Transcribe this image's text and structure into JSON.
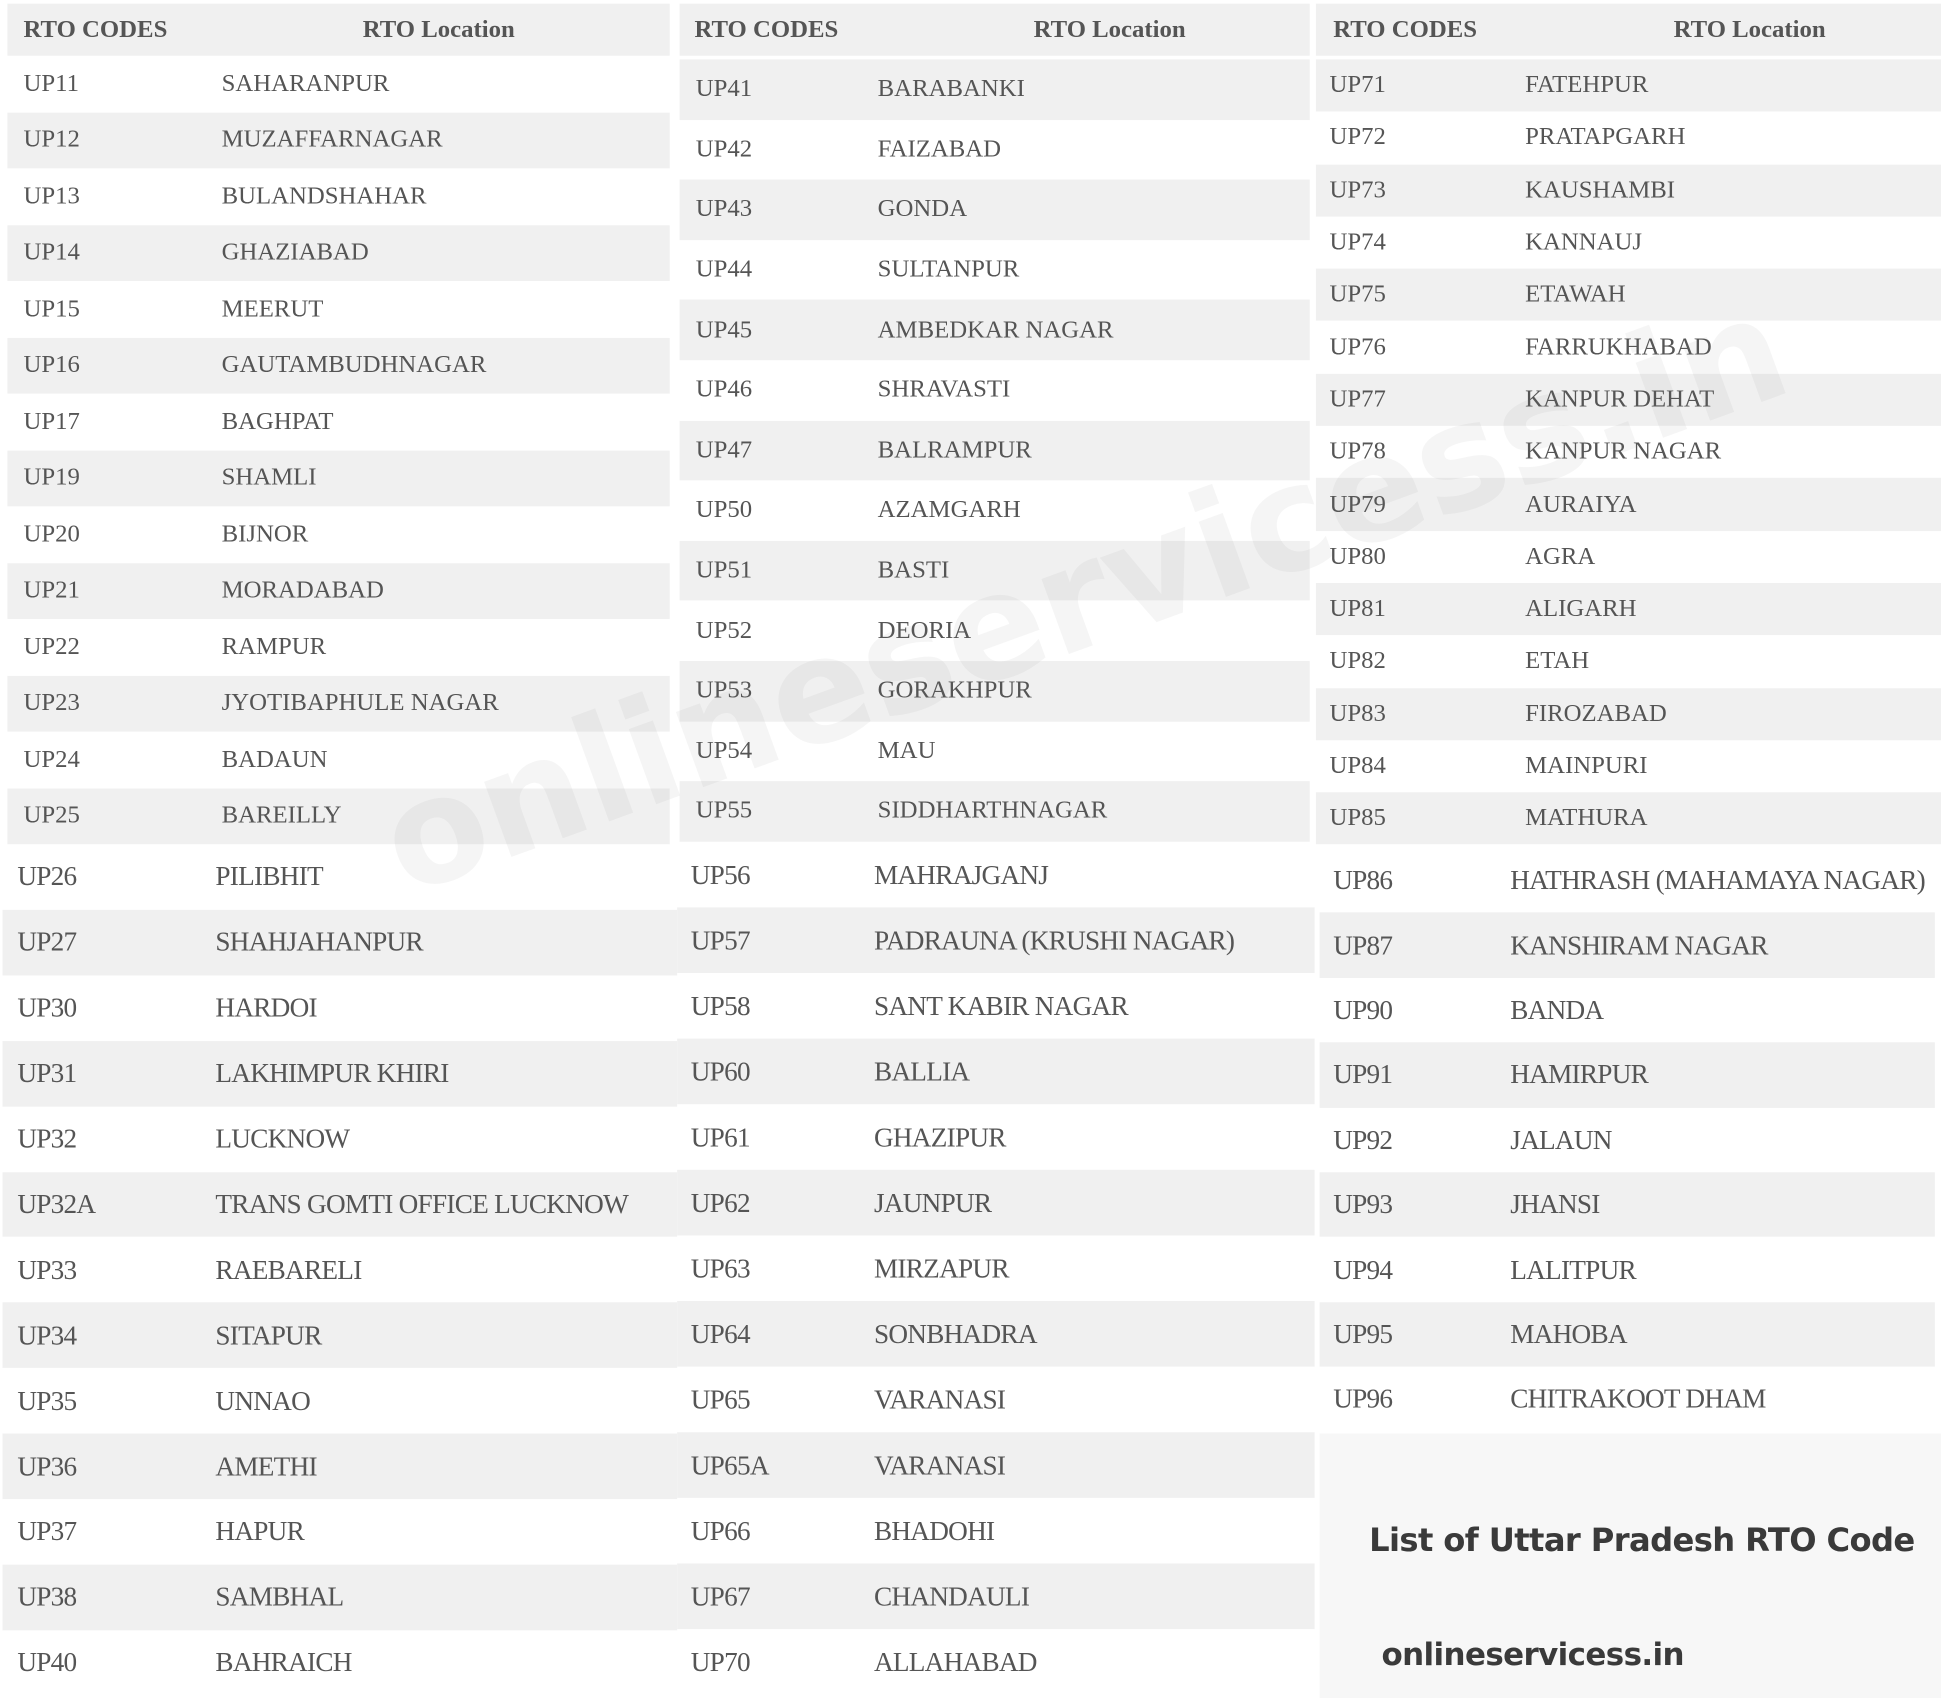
{
  "header": {
    "code_label": "RTO CODES",
    "location_label": "RTO Location"
  },
  "tables": [
    {
      "upper": [
        [
          "UP11",
          "SAHARANPUR"
        ],
        [
          "UP12",
          "MUZAFFARNAGAR"
        ],
        [
          "UP13",
          "BULANDSHAHAR"
        ],
        [
          "UP14",
          "GHAZIABAD"
        ],
        [
          "UP15",
          "MEERUT"
        ],
        [
          "UP16",
          "GAUTAMBUDHNAGAR"
        ],
        [
          "UP17",
          "BAGHPAT"
        ],
        [
          "UP19",
          "SHAMLI"
        ],
        [
          "UP20",
          "BIJNOR"
        ],
        [
          "UP21",
          "MORADABAD"
        ],
        [
          "UP22",
          "RAMPUR"
        ],
        [
          "UP23",
          "JYOTIBAPHULE NAGAR"
        ],
        [
          "UP24",
          "BADAUN"
        ],
        [
          "UP25",
          "BAREILLY"
        ]
      ],
      "lower": [
        [
          "UP26",
          "PILIBHIT"
        ],
        [
          "UP27",
          "SHAHJAHANPUR"
        ],
        [
          "UP30",
          "HARDOI"
        ],
        [
          "UP31",
          "LAKHIMPUR KHIRI"
        ],
        [
          "UP32",
          "LUCKNOW"
        ],
        [
          "UP32A",
          "TRANS GOMTI OFFICE LUCKNOW"
        ],
        [
          "UP33",
          "RAEBARELI"
        ],
        [
          "UP34",
          "SITAPUR"
        ],
        [
          "UP35",
          "UNNAO"
        ],
        [
          "UP36",
          "AMETHI"
        ],
        [
          "UP37",
          "HAPUR"
        ],
        [
          "UP38",
          "SAMBHAL"
        ],
        [
          "UP40",
          "BAHRAICH"
        ]
      ]
    },
    {
      "upper": [
        [
          "UP41",
          "BARABANKI"
        ],
        [
          "UP42",
          "FAIZABAD"
        ],
        [
          "UP43",
          "GONDA"
        ],
        [
          "UP44",
          "SULTANPUR"
        ],
        [
          "UP45",
          "AMBEDKAR NAGAR"
        ],
        [
          "UP46",
          "SHRAVASTI"
        ],
        [
          "UP47",
          "BALRAMPUR"
        ],
        [
          "UP50",
          "AZAMGARH"
        ],
        [
          "UP51",
          "BASTI"
        ],
        [
          "UP52",
          "DEORIA"
        ],
        [
          "UP53",
          "GORAKHPUR"
        ],
        [
          "UP54",
          "MAU"
        ],
        [
          "UP55",
          "SIDDHARTHNAGAR"
        ]
      ],
      "lower": [
        [
          "UP56",
          "MAHRAJGANJ"
        ],
        [
          "UP57",
          "PADRAUNA (KRUSHI NAGAR)"
        ],
        [
          "UP58",
          "SANT KABIR NAGAR"
        ],
        [
          "UP60",
          "BALLIA"
        ],
        [
          "UP61",
          "GHAZIPUR"
        ],
        [
          "UP62",
          "JAUNPUR"
        ],
        [
          "UP63",
          "MIRZAPUR"
        ],
        [
          "UP64",
          "SONBHADRA"
        ],
        [
          "UP65",
          "VARANASI"
        ],
        [
          "UP65A",
          "VARANASI"
        ],
        [
          "UP66",
          "BHADOHI"
        ],
        [
          "UP67",
          "CHANDAULI"
        ],
        [
          "UP70",
          "ALLAHABAD"
        ]
      ]
    },
    {
      "upper": [
        [
          "UP71",
          "FATEHPUR"
        ],
        [
          "UP72",
          "PRATAPGARH"
        ],
        [
          "UP73",
          "KAUSHAMBI"
        ],
        [
          "UP74",
          "KANNAUJ"
        ],
        [
          "UP75",
          "ETAWAH"
        ],
        [
          "UP76",
          "FARRUKHABAD"
        ],
        [
          "UP77",
          "KANPUR DEHAT"
        ],
        [
          "UP78",
          "KANPUR NAGAR"
        ],
        [
          "UP79",
          "AURAIYA"
        ],
        [
          "UP80",
          "AGRA"
        ],
        [
          "UP81",
          "ALIGARH"
        ],
        [
          "UP82",
          "ETAH"
        ],
        [
          "UP83",
          "FIROZABAD"
        ],
        [
          "UP84",
          "MAINPURI"
        ],
        [
          "UP85",
          "MATHURA"
        ]
      ],
      "lower": [
        [
          "UP86",
          "HATHRASH (MAHAMAYA NAGAR)"
        ],
        [
          "UP87",
          "KANSHIRAM NAGAR"
        ],
        [
          "UP90",
          "BANDA"
        ],
        [
          "UP91",
          "HAMIRPUR"
        ],
        [
          "UP92",
          "JALAUN"
        ],
        [
          "UP93",
          "JHANSI"
        ],
        [
          "UP94",
          "LALITPUR"
        ],
        [
          "UP95",
          "MAHOBA"
        ],
        [
          "UP96",
          "CHITRAKOOT DHAM"
        ]
      ]
    }
  ],
  "caption": {
    "title": "List of Uttar Pradesh RTO Code",
    "site": "onlineservicess.in"
  },
  "watermark": "onlineservicess.in",
  "colors": {
    "stripe": "#f0f0f0",
    "text": "#555555",
    "caption_bg": "#f7f7f7"
  }
}
